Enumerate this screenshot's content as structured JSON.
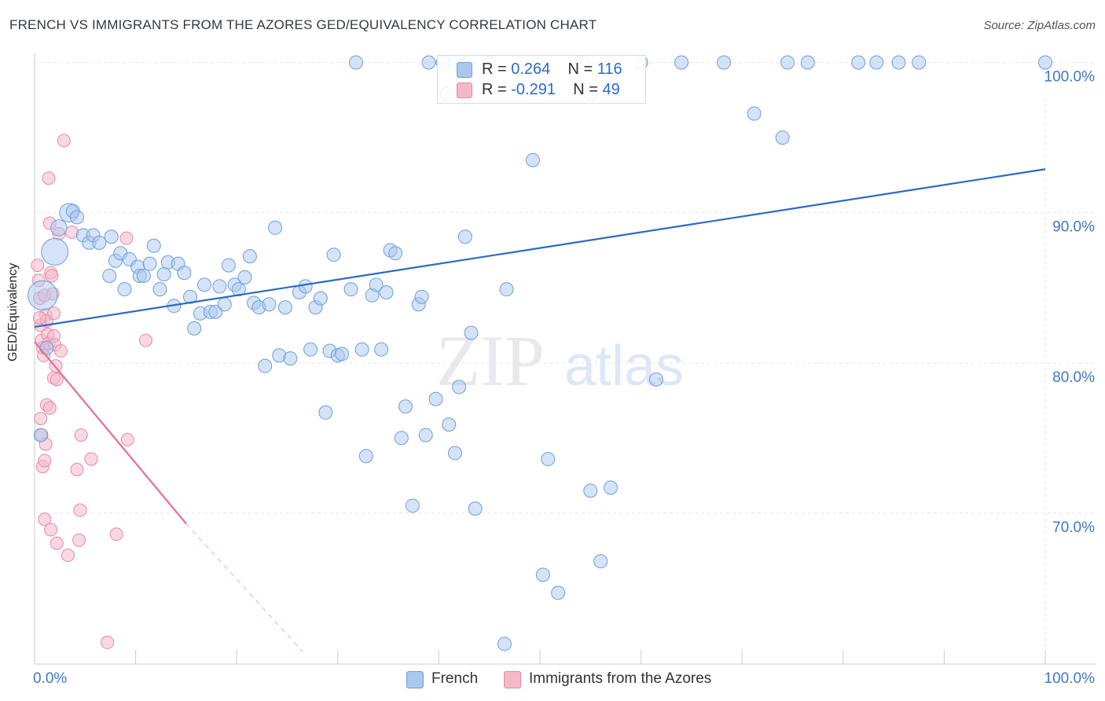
{
  "title": "FRENCH VS IMMIGRANTS FROM THE AZORES GED/EQUIVALENCY CORRELATION CHART",
  "source": "Source: ZipAtlas.com",
  "watermark": {
    "zip": "ZIP",
    "atlas": "atlas"
  },
  "legend": {
    "r_label": "R =",
    "n_label": "N =",
    "french": {
      "r": "0.264",
      "n": "116"
    },
    "azores": {
      "r": "-0.291",
      "n": "49"
    }
  },
  "bottom_legend": {
    "french": "French",
    "azores": "Immigrants from the Azores"
  },
  "colors": {
    "french_fill": "#a9c8ef",
    "french_stroke": "#6f9fd8",
    "french_line": "#2a6bc5",
    "azores_fill": "#f5b8c9",
    "azores_stroke": "#e48aa6",
    "azores_line": "#e0709a",
    "tick_label": "#3f78c8",
    "grid": "#e3e6ea"
  },
  "chart_data": {
    "type": "scatter",
    "title": "FRENCH VS IMMIGRANTS FROM THE AZORES GED/EQUIVALENCY CORRELATION CHART",
    "xlabel": "",
    "ylabel": "GED/Equivalency",
    "xlim": [
      0,
      100
    ],
    "ylim": [
      60.8,
      100.6
    ],
    "x_tick_labels": [
      "0.0%",
      "100.0%"
    ],
    "y_ticks": [
      70,
      80,
      90,
      100
    ],
    "y_tick_labels": [
      "70.0%",
      "80.0%",
      "90.0%",
      "100.0%"
    ],
    "grid": true,
    "series": [
      {
        "name": "French",
        "r": 0.264,
        "n": 116,
        "trend": {
          "x": [
            0,
            100
          ],
          "y": [
            82.4,
            92.9
          ]
        },
        "points": [
          {
            "x": 0.8,
            "y": 84.5,
            "s": 2.2
          },
          {
            "x": 2.0,
            "y": 87.4,
            "s": 2.0
          },
          {
            "x": 3.4,
            "y": 90.0,
            "s": 1.4
          },
          {
            "x": 2.4,
            "y": 89.0,
            "s": 1.2
          },
          {
            "x": 1.2,
            "y": 81.0,
            "s": 1.0
          },
          {
            "x": 0.6,
            "y": 75.2,
            "s": 1.0
          },
          {
            "x": 3.8,
            "y": 90.1,
            "s": 1.0
          },
          {
            "x": 4.2,
            "y": 89.7,
            "s": 1.0
          },
          {
            "x": 4.8,
            "y": 88.5,
            "s": 1.0
          },
          {
            "x": 5.4,
            "y": 88.0,
            "s": 1.0
          },
          {
            "x": 5.8,
            "y": 88.5,
            "s": 1.0
          },
          {
            "x": 6.4,
            "y": 88.0,
            "s": 1.0
          },
          {
            "x": 7.4,
            "y": 85.8,
            "s": 1.0
          },
          {
            "x": 7.6,
            "y": 88.4,
            "s": 1.0
          },
          {
            "x": 8.0,
            "y": 86.8,
            "s": 1.0
          },
          {
            "x": 8.5,
            "y": 87.3,
            "s": 1.0
          },
          {
            "x": 8.9,
            "y": 84.9,
            "s": 1.0
          },
          {
            "x": 9.4,
            "y": 86.9,
            "s": 1.0
          },
          {
            "x": 10.2,
            "y": 86.4,
            "s": 1.0
          },
          {
            "x": 10.4,
            "y": 85.8,
            "s": 1.0
          },
          {
            "x": 10.8,
            "y": 85.8,
            "s": 1.0
          },
          {
            "x": 11.4,
            "y": 86.6,
            "s": 1.0
          },
          {
            "x": 11.8,
            "y": 87.8,
            "s": 1.0
          },
          {
            "x": 12.4,
            "y": 84.9,
            "s": 1.0
          },
          {
            "x": 12.8,
            "y": 85.9,
            "s": 1.0
          },
          {
            "x": 13.2,
            "y": 86.7,
            "s": 1.0
          },
          {
            "x": 13.8,
            "y": 83.8,
            "s": 1.0
          },
          {
            "x": 14.2,
            "y": 86.6,
            "s": 1.0
          },
          {
            "x": 14.8,
            "y": 86.0,
            "s": 1.0
          },
          {
            "x": 15.4,
            "y": 84.4,
            "s": 1.0
          },
          {
            "x": 15.8,
            "y": 82.3,
            "s": 1.0
          },
          {
            "x": 16.4,
            "y": 83.3,
            "s": 1.0
          },
          {
            "x": 16.8,
            "y": 85.2,
            "s": 1.0
          },
          {
            "x": 17.4,
            "y": 83.4,
            "s": 1.0
          },
          {
            "x": 17.9,
            "y": 83.4,
            "s": 1.0
          },
          {
            "x": 18.3,
            "y": 85.1,
            "s": 1.0
          },
          {
            "x": 18.8,
            "y": 83.9,
            "s": 1.0
          },
          {
            "x": 19.2,
            "y": 86.5,
            "s": 1.0
          },
          {
            "x": 19.8,
            "y": 85.2,
            "s": 1.0
          },
          {
            "x": 20.2,
            "y": 84.9,
            "s": 1.0
          },
          {
            "x": 20.8,
            "y": 85.7,
            "s": 1.0
          },
          {
            "x": 21.3,
            "y": 87.1,
            "s": 1.0
          },
          {
            "x": 21.7,
            "y": 84.0,
            "s": 1.0
          },
          {
            "x": 22.2,
            "y": 83.7,
            "s": 1.0
          },
          {
            "x": 22.8,
            "y": 79.8,
            "s": 1.0
          },
          {
            "x": 23.2,
            "y": 83.9,
            "s": 1.0
          },
          {
            "x": 23.8,
            "y": 89.0,
            "s": 1.0
          },
          {
            "x": 24.2,
            "y": 80.5,
            "s": 1.0
          },
          {
            "x": 24.8,
            "y": 83.7,
            "s": 1.0
          },
          {
            "x": 25.3,
            "y": 80.3,
            "s": 1.0
          },
          {
            "x": 26.2,
            "y": 84.7,
            "s": 1.0
          },
          {
            "x": 26.8,
            "y": 85.1,
            "s": 1.0
          },
          {
            "x": 27.3,
            "y": 80.9,
            "s": 1.0
          },
          {
            "x": 27.8,
            "y": 83.7,
            "s": 1.0
          },
          {
            "x": 28.3,
            "y": 84.3,
            "s": 1.0
          },
          {
            "x": 28.8,
            "y": 76.7,
            "s": 1.0
          },
          {
            "x": 29.2,
            "y": 80.8,
            "s": 1.0
          },
          {
            "x": 29.6,
            "y": 87.2,
            "s": 1.0
          },
          {
            "x": 30.0,
            "y": 80.5,
            "s": 1.0
          },
          {
            "x": 30.4,
            "y": 80.6,
            "s": 1.0
          },
          {
            "x": 31.3,
            "y": 84.9,
            "s": 1.0
          },
          {
            "x": 31.8,
            "y": 100.0,
            "s": 1.0
          },
          {
            "x": 32.4,
            "y": 80.9,
            "s": 1.0
          },
          {
            "x": 32.8,
            "y": 73.8,
            "s": 1.0
          },
          {
            "x": 33.4,
            "y": 84.5,
            "s": 1.0
          },
          {
            "x": 33.8,
            "y": 85.2,
            "s": 1.0
          },
          {
            "x": 34.3,
            "y": 80.9,
            "s": 1.0
          },
          {
            "x": 34.8,
            "y": 84.7,
            "s": 1.0
          },
          {
            "x": 35.2,
            "y": 87.5,
            "s": 1.0
          },
          {
            "x": 35.7,
            "y": 87.3,
            "s": 1.0
          },
          {
            "x": 36.3,
            "y": 75.0,
            "s": 1.0
          },
          {
            "x": 36.7,
            "y": 77.1,
            "s": 1.0
          },
          {
            "x": 37.4,
            "y": 70.5,
            "s": 1.0
          },
          {
            "x": 38.0,
            "y": 83.9,
            "s": 1.0
          },
          {
            "x": 38.3,
            "y": 84.4,
            "s": 1.0
          },
          {
            "x": 38.7,
            "y": 75.2,
            "s": 1.0
          },
          {
            "x": 39.0,
            "y": 100.0,
            "s": 1.0
          },
          {
            "x": 39.7,
            "y": 77.6,
            "s": 1.0
          },
          {
            "x": 40.4,
            "y": 100.0,
            "s": 1.0
          },
          {
            "x": 40.8,
            "y": 97.9,
            "s": 1.0
          },
          {
            "x": 41.0,
            "y": 75.9,
            "s": 1.0
          },
          {
            "x": 41.6,
            "y": 74.0,
            "s": 1.0
          },
          {
            "x": 42.0,
            "y": 78.4,
            "s": 1.0
          },
          {
            "x": 42.6,
            "y": 88.4,
            "s": 1.0
          },
          {
            "x": 43.2,
            "y": 82.0,
            "s": 1.0
          },
          {
            "x": 43.6,
            "y": 70.3,
            "s": 1.0
          },
          {
            "x": 45.0,
            "y": 100.0,
            "s": 1.0
          },
          {
            "x": 46.5,
            "y": 61.3,
            "s": 1.0
          },
          {
            "x": 46.7,
            "y": 84.9,
            "s": 1.0
          },
          {
            "x": 49.3,
            "y": 93.5,
            "s": 1.0
          },
          {
            "x": 50.3,
            "y": 65.9,
            "s": 1.0
          },
          {
            "x": 50.8,
            "y": 73.6,
            "s": 1.0
          },
          {
            "x": 51.8,
            "y": 64.7,
            "s": 1.0
          },
          {
            "x": 54.2,
            "y": 100.0,
            "s": 1.0
          },
          {
            "x": 55.0,
            "y": 71.5,
            "s": 1.0
          },
          {
            "x": 55.0,
            "y": 97.9,
            "s": 1.0
          },
          {
            "x": 56.0,
            "y": 66.8,
            "s": 1.0
          },
          {
            "x": 57.0,
            "y": 71.7,
            "s": 1.0
          },
          {
            "x": 60.0,
            "y": 100.0,
            "s": 1.0
          },
          {
            "x": 61.5,
            "y": 78.9,
            "s": 1.0
          },
          {
            "x": 64.0,
            "y": 100.0,
            "s": 1.0
          },
          {
            "x": 68.2,
            "y": 100.0,
            "s": 1.0
          },
          {
            "x": 71.2,
            "y": 96.6,
            "s": 1.0
          },
          {
            "x": 74.0,
            "y": 95.0,
            "s": 1.0
          },
          {
            "x": 74.5,
            "y": 100.0,
            "s": 1.0
          },
          {
            "x": 76.5,
            "y": 100.0,
            "s": 1.0
          },
          {
            "x": 81.5,
            "y": 100.0,
            "s": 1.0
          },
          {
            "x": 83.3,
            "y": 100.0,
            "s": 1.0
          },
          {
            "x": 85.5,
            "y": 100.0,
            "s": 1.0
          },
          {
            "x": 87.5,
            "y": 100.0,
            "s": 1.0
          },
          {
            "x": 100.0,
            "y": 100.0,
            "s": 1.0
          },
          {
            "x": 41.6,
            "y": 100.0,
            "s": 1.0
          }
        ]
      },
      {
        "name": "Immigrants from the Azores",
        "r": -0.291,
        "n": 49,
        "trend": {
          "x": [
            0,
            15.0
          ],
          "y": [
            81.4,
            69.3
          ]
        },
        "trend_dashed": {
          "x": [
            15.0,
            26.5
          ],
          "y": [
            69.3,
            60.8
          ]
        },
        "points": [
          {
            "x": 0.3,
            "y": 86.5
          },
          {
            "x": 0.4,
            "y": 85.5
          },
          {
            "x": 0.5,
            "y": 84.3
          },
          {
            "x": 0.6,
            "y": 82.5
          },
          {
            "x": 0.7,
            "y": 81.5
          },
          {
            "x": 0.8,
            "y": 81.0
          },
          {
            "x": 0.9,
            "y": 80.5
          },
          {
            "x": 0.6,
            "y": 76.3
          },
          {
            "x": 0.7,
            "y": 75.2
          },
          {
            "x": 0.8,
            "y": 73.1
          },
          {
            "x": 1.0,
            "y": 84.5
          },
          {
            "x": 1.1,
            "y": 83.2
          },
          {
            "x": 1.2,
            "y": 82.8
          },
          {
            "x": 1.3,
            "y": 81.9
          },
          {
            "x": 1.4,
            "y": 81.3
          },
          {
            "x": 1.2,
            "y": 77.2
          },
          {
            "x": 1.1,
            "y": 74.6
          },
          {
            "x": 1.0,
            "y": 73.5
          },
          {
            "x": 1.0,
            "y": 69.6
          },
          {
            "x": 1.4,
            "y": 92.3
          },
          {
            "x": 1.5,
            "y": 89.3
          },
          {
            "x": 1.6,
            "y": 86.0
          },
          {
            "x": 1.7,
            "y": 85.8
          },
          {
            "x": 1.8,
            "y": 84.6
          },
          {
            "x": 1.9,
            "y": 83.3
          },
          {
            "x": 1.9,
            "y": 81.8
          },
          {
            "x": 2.0,
            "y": 81.2
          },
          {
            "x": 2.1,
            "y": 79.8
          },
          {
            "x": 1.9,
            "y": 79.0
          },
          {
            "x": 2.2,
            "y": 78.9
          },
          {
            "x": 1.6,
            "y": 68.9
          },
          {
            "x": 2.2,
            "y": 68.0
          },
          {
            "x": 2.4,
            "y": 88.6
          },
          {
            "x": 2.6,
            "y": 80.8
          },
          {
            "x": 2.9,
            "y": 94.8
          },
          {
            "x": 3.3,
            "y": 67.2
          },
          {
            "x": 3.7,
            "y": 88.7
          },
          {
            "x": 4.2,
            "y": 72.9
          },
          {
            "x": 4.4,
            "y": 68.2
          },
          {
            "x": 4.5,
            "y": 70.2
          },
          {
            "x": 4.6,
            "y": 75.2
          },
          {
            "x": 5.6,
            "y": 73.6
          },
          {
            "x": 7.2,
            "y": 61.4
          },
          {
            "x": 8.1,
            "y": 68.6
          },
          {
            "x": 9.2,
            "y": 74.9
          },
          {
            "x": 9.1,
            "y": 88.3
          },
          {
            "x": 11.0,
            "y": 81.5
          },
          {
            "x": 0.5,
            "y": 83.0
          },
          {
            "x": 1.5,
            "y": 77.0
          }
        ]
      }
    ]
  }
}
